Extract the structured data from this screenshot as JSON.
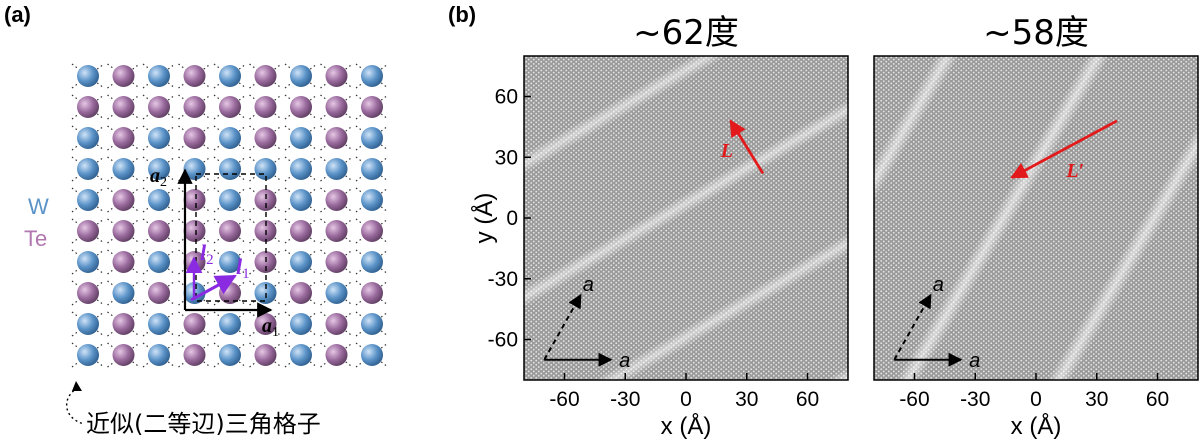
{
  "panel_a": {
    "label": "(a)",
    "legend": [
      {
        "text": "W",
        "color": "#5b93c8"
      },
      {
        "text": "Te",
        "color": "#b277b1"
      }
    ],
    "vectors": {
      "a1": "a",
      "a1_sub": "1",
      "a2": "a",
      "a2_sub": "2",
      "l1": "l",
      "l1_sub": "1",
      "l2": "l",
      "l2_sub": "2"
    },
    "caption": "近似(二等辺)三角格子",
    "colors": {
      "w_atom": "#5b93c8",
      "te_atom": "#9a6b9e",
      "vector_accent": "#8a2be2",
      "bond": "#333333"
    }
  },
  "panel_b": {
    "label": "(b)",
    "plots": [
      {
        "title": "~62度",
        "vector_label": "L",
        "basis_label": "a"
      },
      {
        "title": "~58度",
        "vector_label": "L′",
        "basis_label": "a"
      }
    ],
    "ylabel": "y (Å)",
    "xlabel": "x (Å)",
    "colors": {
      "vector": "#e31a1c",
      "background": "#8c8c8c",
      "stripe": "#d9d9d9"
    }
  },
  "chart_data": [
    {
      "type": "heatmap",
      "title": "~62度",
      "xlabel": "x (Å)",
      "ylabel": "y (Å)",
      "xlim": [
        -80,
        80
      ],
      "ylim": [
        -80,
        80
      ],
      "xticks": [
        -60,
        -30,
        0,
        30,
        60
      ],
      "yticks": [
        60,
        30,
        0,
        -30,
        -60
      ],
      "annotation_vector": {
        "label": "L",
        "from": [
          38,
          22
        ],
        "to": [
          22,
          48
        ]
      },
      "basis_vectors": [
        {
          "label": "a",
          "from": [
            -70,
            -70
          ],
          "to": [
            -37,
            -70
          ],
          "style": "solid"
        },
        {
          "label": "a",
          "from": [
            -70,
            -70
          ],
          "to": [
            -52,
            -38
          ],
          "style": "dashed"
        }
      ]
    },
    {
      "type": "heatmap",
      "title": "~58度",
      "xlabel": "x (Å)",
      "ylabel": "",
      "xlim": [
        -80,
        80
      ],
      "ylim": [
        -80,
        80
      ],
      "xticks": [
        -60,
        -30,
        0,
        30,
        60
      ],
      "yticks": [],
      "annotation_vector": {
        "label": "L′",
        "from": [
          40,
          48
        ],
        "to": [
          -12,
          20
        ]
      },
      "basis_vectors": [
        {
          "label": "a",
          "from": [
            -70,
            -70
          ],
          "to": [
            -37,
            -70
          ],
          "style": "solid"
        },
        {
          "label": "a",
          "from": [
            -70,
            -70
          ],
          "to": [
            -52,
            -38
          ],
          "style": "dashed"
        }
      ]
    }
  ]
}
